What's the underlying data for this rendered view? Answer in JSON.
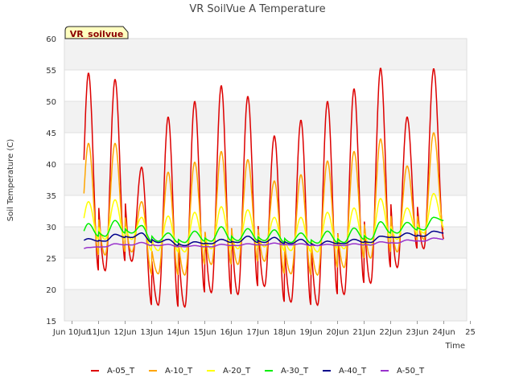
{
  "chart_data": {
    "type": "line",
    "title": "VR SoilVue A Temperature",
    "xlabel": "Time",
    "ylabel": "Soil Temperature (C)",
    "site_label": "VR_soilvue",
    "ylim": [
      15,
      60
    ],
    "yticks": [
      15,
      20,
      25,
      30,
      35,
      40,
      45,
      50,
      55,
      60
    ],
    "xlim": [
      "2024-06-10",
      "2024-06-25"
    ],
    "xticks": [
      "Jun 10Jun",
      "11Jun",
      "12Jun",
      "13Jun",
      "14Jun",
      "15Jun",
      "16Jun",
      "17Jun",
      "18Jun",
      "19Jun",
      "20Jun",
      "21Jun",
      "22Jun",
      "23Jun",
      "24Jun",
      "25"
    ],
    "grid": "horizontal bands",
    "legend_position": "bottom",
    "days": [
      "Jun 10",
      "Jun 11",
      "Jun 12",
      "Jun 13",
      "Jun 14",
      "Jun 15",
      "Jun 16",
      "Jun 17",
      "Jun 18",
      "Jun 19",
      "Jun 20",
      "Jun 21",
      "Jun 22",
      "Jun 23",
      "Jun 24"
    ],
    "series": [
      {
        "name": "A-05_T",
        "color": "#dd0000",
        "daily_min": [
          22.8,
          23.0,
          24.5,
          17.5,
          17.2,
          19.5,
          19.2,
          20.5,
          18.0,
          17.5,
          19.2,
          21.0,
          23.5,
          26.5,
          28.0
        ],
        "daily_max": [
          54.5,
          53.5,
          39.5,
          47.5,
          50.0,
          52.5,
          50.8,
          44.5,
          47.0,
          50.0,
          52.0,
          55.3,
          47.5,
          55.2,
          33.0
        ]
      },
      {
        "name": "A-10_T",
        "color": "#ffa500",
        "daily_min": [
          25.0,
          25.5,
          26.0,
          22.5,
          22.3,
          24.0,
          24.0,
          24.5,
          22.5,
          22.3,
          23.5,
          25.0,
          26.0,
          28.0,
          29.5
        ],
        "daily_max": [
          43.3,
          43.3,
          34.0,
          38.7,
          40.3,
          42.0,
          40.7,
          37.3,
          38.3,
          40.5,
          42.0,
          44.0,
          39.7,
          45.0,
          33.0
        ]
      },
      {
        "name": "A-20_T",
        "color": "#ffff00",
        "daily_min": [
          28.0,
          28.0,
          28.0,
          26.2,
          26.0,
          26.5,
          26.5,
          26.8,
          26.2,
          26.0,
          26.5,
          27.0,
          28.0,
          29.0,
          30.0
        ],
        "daily_max": [
          34.0,
          34.3,
          31.5,
          31.7,
          32.3,
          33.2,
          32.7,
          31.5,
          31.5,
          32.3,
          33.0,
          34.5,
          33.0,
          35.3,
          34.5
        ]
      },
      {
        "name": "A-30_T",
        "color": "#00ee00",
        "daily_min": [
          27.8,
          28.5,
          29.0,
          27.7,
          27.5,
          27.7,
          27.8,
          27.8,
          27.5,
          27.4,
          27.5,
          28.0,
          29.0,
          29.5,
          31.0
        ],
        "daily_max": [
          30.5,
          31.0,
          30.2,
          29.0,
          29.3,
          30.0,
          29.7,
          29.5,
          29.0,
          29.3,
          29.8,
          30.8,
          30.7,
          31.5,
          31.8
        ]
      },
      {
        "name": "A-40_T",
        "color": "#00008b",
        "daily_min": [
          27.5,
          27.7,
          28.3,
          27.5,
          27.0,
          27.3,
          27.5,
          27.5,
          27.3,
          27.0,
          27.3,
          27.5,
          28.3,
          28.5,
          29.0
        ],
        "daily_max": [
          28.1,
          28.8,
          29.0,
          28.0,
          27.6,
          28.0,
          28.5,
          28.3,
          28.0,
          27.7,
          28.0,
          28.5,
          29.0,
          29.3,
          29.5
        ]
      },
      {
        "name": "A-50_T",
        "color": "#9932cc",
        "daily_min": [
          26.3,
          26.8,
          27.1,
          27.0,
          26.8,
          26.8,
          27.0,
          27.1,
          27.1,
          27.0,
          27.0,
          27.1,
          27.4,
          27.7,
          28.0
        ],
        "daily_max": [
          26.7,
          27.3,
          27.5,
          27.2,
          27.0,
          27.2,
          27.3,
          27.4,
          27.3,
          27.2,
          27.3,
          27.6,
          27.9,
          28.2,
          28.4
        ]
      }
    ]
  }
}
